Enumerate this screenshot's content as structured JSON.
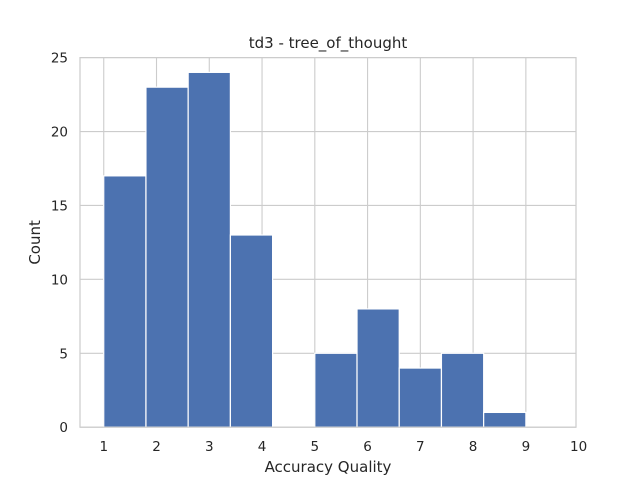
{
  "chart_data": {
    "type": "bar",
    "title": "td3 - tree_of_thought",
    "xlabel": "Accuracy Quality",
    "ylabel": "Count",
    "xlim": [
      0.55,
      9.95
    ],
    "ylim": [
      0,
      25
    ],
    "bin_edges": [
      1.0,
      1.8,
      2.6,
      3.4,
      4.2,
      5.0,
      5.8,
      6.6,
      7.4,
      8.2,
      9.0
    ],
    "counts": [
      17,
      23,
      24,
      13,
      0,
      5,
      8,
      4,
      5,
      1
    ],
    "x_ticks": [
      1,
      2,
      3,
      4,
      5,
      6,
      7,
      8,
      9,
      10
    ],
    "y_ticks": [
      0,
      5,
      10,
      15,
      20,
      25
    ],
    "grid": true,
    "bar_color": "#4c72b0",
    "grid_color": "#cccccc",
    "text_color": "#262626"
  }
}
